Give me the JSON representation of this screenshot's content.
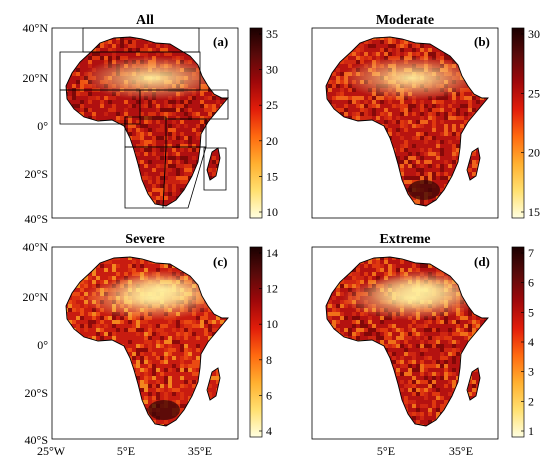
{
  "panels": [
    {
      "title": "All",
      "label": "(a)",
      "colorbar_ticks": [
        "10",
        "15",
        "20",
        "25",
        "30",
        "35"
      ],
      "has_regions": true
    },
    {
      "title": "Moderate",
      "label": "(b)",
      "colorbar_ticks": [
        "15",
        "20",
        "25",
        "30"
      ],
      "has_regions": false
    },
    {
      "title": "Severe",
      "label": "(c)",
      "colorbar_ticks": [
        "4",
        "6",
        "8",
        "10",
        "12",
        "14"
      ],
      "has_regions": false
    },
    {
      "title": "Extreme",
      "label": "(d)",
      "colorbar_ticks": [
        "1",
        "2",
        "3",
        "4",
        "5",
        "6",
        "7"
      ],
      "has_regions": false
    }
  ],
  "y_ticks": [
    "40°N",
    "20°N",
    "0°",
    "20°S",
    "40°S"
  ],
  "x_ticks": [
    "25°W",
    "5°E",
    "35°E"
  ],
  "colormap": [
    "#ffffe0",
    "#ffe070",
    "#ffb030",
    "#ff6a10",
    "#e21d0a",
    "#a0080a",
    "#5a0a0a",
    "#1a0000"
  ],
  "hotspot_color": "#fff2a0",
  "coast_color": "#000000"
}
